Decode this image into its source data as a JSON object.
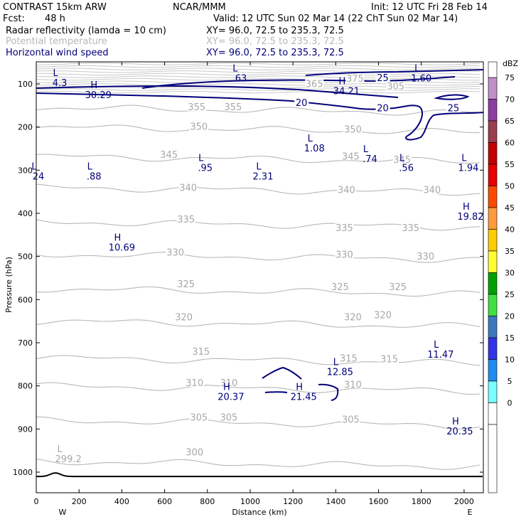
{
  "header": {
    "model": "CONTRAST 15km ARW",
    "org": "NCAR/MMM",
    "init": "Init: 12 UTC Fri 28 Feb 14",
    "fcst_label": "Fcst:",
    "fcst_value": "48 h",
    "valid": "Valid: 12 UTC Sun 02 Mar 14 (22 ChT Sun 02 Mar 14)",
    "fields": [
      {
        "name": "Radar reflectivity (lamda = 10 cm)",
        "xy": "XY=  96.0, 72.5 to 235.3, 72.5",
        "color": "#000000"
      },
      {
        "name": "Potential temperature",
        "xy": "XY=  96.0, 72.5 to 235.3, 72.5",
        "color": "#b8b8b8"
      },
      {
        "name": "Horizontal wind speed",
        "xy": "XY=  96.0, 72.5 to 235.3, 72.5",
        "color": "#00007a"
      }
    ]
  },
  "chart_data": {
    "type": "contour-cross-section",
    "xlabel": "Distance (km)",
    "ylabel": "Pressure (hPa)",
    "xlim": [
      0,
      2090
    ],
    "ylim": [
      1050,
      70
    ],
    "x_ticks": [
      0,
      200,
      400,
      600,
      800,
      1000,
      1200,
      1400,
      1600,
      1800,
      2000
    ],
    "y_ticks": [
      100,
      200,
      300,
      400,
      500,
      600,
      700,
      800,
      900,
      1000
    ],
    "direction_left": "W",
    "direction_right": "E",
    "colorbar": {
      "title": "dBZ",
      "levels": [
        "75",
        "70",
        "65",
        "60",
        "55",
        "50",
        "45",
        "40",
        "35",
        "30",
        "25",
        "20",
        "15",
        "10",
        "5",
        "0"
      ],
      "colors": [
        "#c08fc8",
        "#8c3fa0",
        "#9b3c50",
        "#c00000",
        "#e60000",
        "#ff4a00",
        "#ff9a3c",
        "#ffcc00",
        "#ffff33",
        "#00a000",
        "#40e040",
        "#3c78c0",
        "#3232e6",
        "#1e8cf0",
        "#78ffff",
        "#ffffff"
      ]
    },
    "theta_contours": [
      {
        "value": "355",
        "p": 155
      },
      {
        "value": "350",
        "p": 200
      },
      {
        "value": "345",
        "p": 268
      },
      {
        "value": "340",
        "p": 340
      },
      {
        "value": "335",
        "p": 420
      },
      {
        "value": "330",
        "p": 495
      },
      {
        "value": "325",
        "p": 575
      },
      {
        "value": "320",
        "p": 650
      },
      {
        "value": "315",
        "p": 735
      },
      {
        "value": "310",
        "p": 800
      },
      {
        "value": "305",
        "p": 880
      },
      {
        "value": "300",
        "p": 975
      }
    ],
    "theta_labels": [
      {
        "text": "355",
        "x": 750,
        "p": 158
      },
      {
        "text": "355",
        "x": 920,
        "p": 158
      },
      {
        "text": "350",
        "x": 760,
        "p": 203
      },
      {
        "text": "350",
        "x": 1480,
        "p": 210
      },
      {
        "text": "345",
        "x": 620,
        "p": 268
      },
      {
        "text": "345",
        "x": 1470,
        "p": 272
      },
      {
        "text": "345",
        "x": 1710,
        "p": 280
      },
      {
        "text": "340",
        "x": 710,
        "p": 345
      },
      {
        "text": "340",
        "x": 1450,
        "p": 350
      },
      {
        "text": "340",
        "x": 1850,
        "p": 350
      },
      {
        "text": "335",
        "x": 700,
        "p": 418
      },
      {
        "text": "335",
        "x": 1440,
        "p": 438
      },
      {
        "text": "335",
        "x": 1750,
        "p": 438
      },
      {
        "text": "330",
        "x": 650,
        "p": 495
      },
      {
        "text": "330",
        "x": 1440,
        "p": 500
      },
      {
        "text": "330",
        "x": 1820,
        "p": 504
      },
      {
        "text": "325",
        "x": 700,
        "p": 568
      },
      {
        "text": "325",
        "x": 1420,
        "p": 575
      },
      {
        "text": "325",
        "x": 1690,
        "p": 575
      },
      {
        "text": "320",
        "x": 690,
        "p": 645
      },
      {
        "text": "320",
        "x": 1480,
        "p": 645
      },
      {
        "text": "320",
        "x": 1620,
        "p": 640
      },
      {
        "text": "315",
        "x": 770,
        "p": 725
      },
      {
        "text": "315",
        "x": 1460,
        "p": 740
      },
      {
        "text": "315",
        "x": 1650,
        "p": 742
      },
      {
        "text": "310",
        "x": 740,
        "p": 797
      },
      {
        "text": "310",
        "x": 900,
        "p": 797
      },
      {
        "text": "310",
        "x": 1480,
        "p": 801
      },
      {
        "text": "305",
        "x": 760,
        "p": 877
      },
      {
        "text": "305",
        "x": 900,
        "p": 877
      },
      {
        "text": "305",
        "x": 1470,
        "p": 882
      },
      {
        "text": "300",
        "x": 740,
        "p": 958
      },
      {
        "text": "375",
        "x": 1490,
        "p": 92
      },
      {
        "text": "365",
        "x": 1300,
        "p": 104
      },
      {
        "text": "305",
        "x": 1680,
        "p": 110
      }
    ],
    "wind_labels": [
      {
        "text": "20",
        "x": 1240,
        "p": 148
      },
      {
        "text": "20",
        "x": 1620,
        "p": 160
      },
      {
        "text": "25",
        "x": 1620,
        "p": 90
      },
      {
        "text": "25",
        "x": 1950,
        "p": 160
      }
    ],
    "extrema_theta": [
      {
        "type": "L",
        "value": "299.2",
        "x": 150,
        "p": 970
      }
    ],
    "extrema_wind": [
      {
        "type": "L",
        "value": "4.3",
        "x": 110,
        "p": 98
      },
      {
        "type": "H",
        "value": "30.29",
        "x": 290,
        "p": 126
      },
      {
        "type": "L",
        "value": ".63",
        "x": 950,
        "p": 88
      },
      {
        "type": "H",
        "value": "34.21",
        "x": 1450,
        "p": 117
      },
      {
        "type": "L",
        "value": "1.60",
        "x": 1800,
        "p": 88
      },
      {
        "type": "L",
        "value": "1.08",
        "x": 1300,
        "p": 250
      },
      {
        "type": "L",
        "value": ".74",
        "x": 1560,
        "p": 275
      },
      {
        "type": "L",
        "value": ".56",
        "x": 1730,
        "p": 295
      },
      {
        "type": "L",
        "value": "1.94",
        "x": 2020,
        "p": 295
      },
      {
        "type": "L",
        "value": "24",
        "x": 10,
        "p": 315
      },
      {
        "type": "L",
        "value": ".88",
        "x": 270,
        "p": 315
      },
      {
        "type": "L",
        "value": ".95",
        "x": 790,
        "p": 295
      },
      {
        "type": "L",
        "value": "2.31",
        "x": 1060,
        "p": 315
      },
      {
        "type": "H",
        "value": "19.82",
        "x": 2030,
        "p": 408
      },
      {
        "type": "H",
        "value": "10.69",
        "x": 400,
        "p": 480
      },
      {
        "type": "L",
        "value": "11.47",
        "x": 1890,
        "p": 728
      },
      {
        "type": "L",
        "value": "12.85",
        "x": 1420,
        "p": 768
      },
      {
        "type": "H",
        "value": "20.37",
        "x": 910,
        "p": 826
      },
      {
        "type": "H",
        "value": "21.45",
        "x": 1250,
        "p": 826
      },
      {
        "type": "H",
        "value": "20.35",
        "x": 1980,
        "p": 906
      }
    ]
  }
}
